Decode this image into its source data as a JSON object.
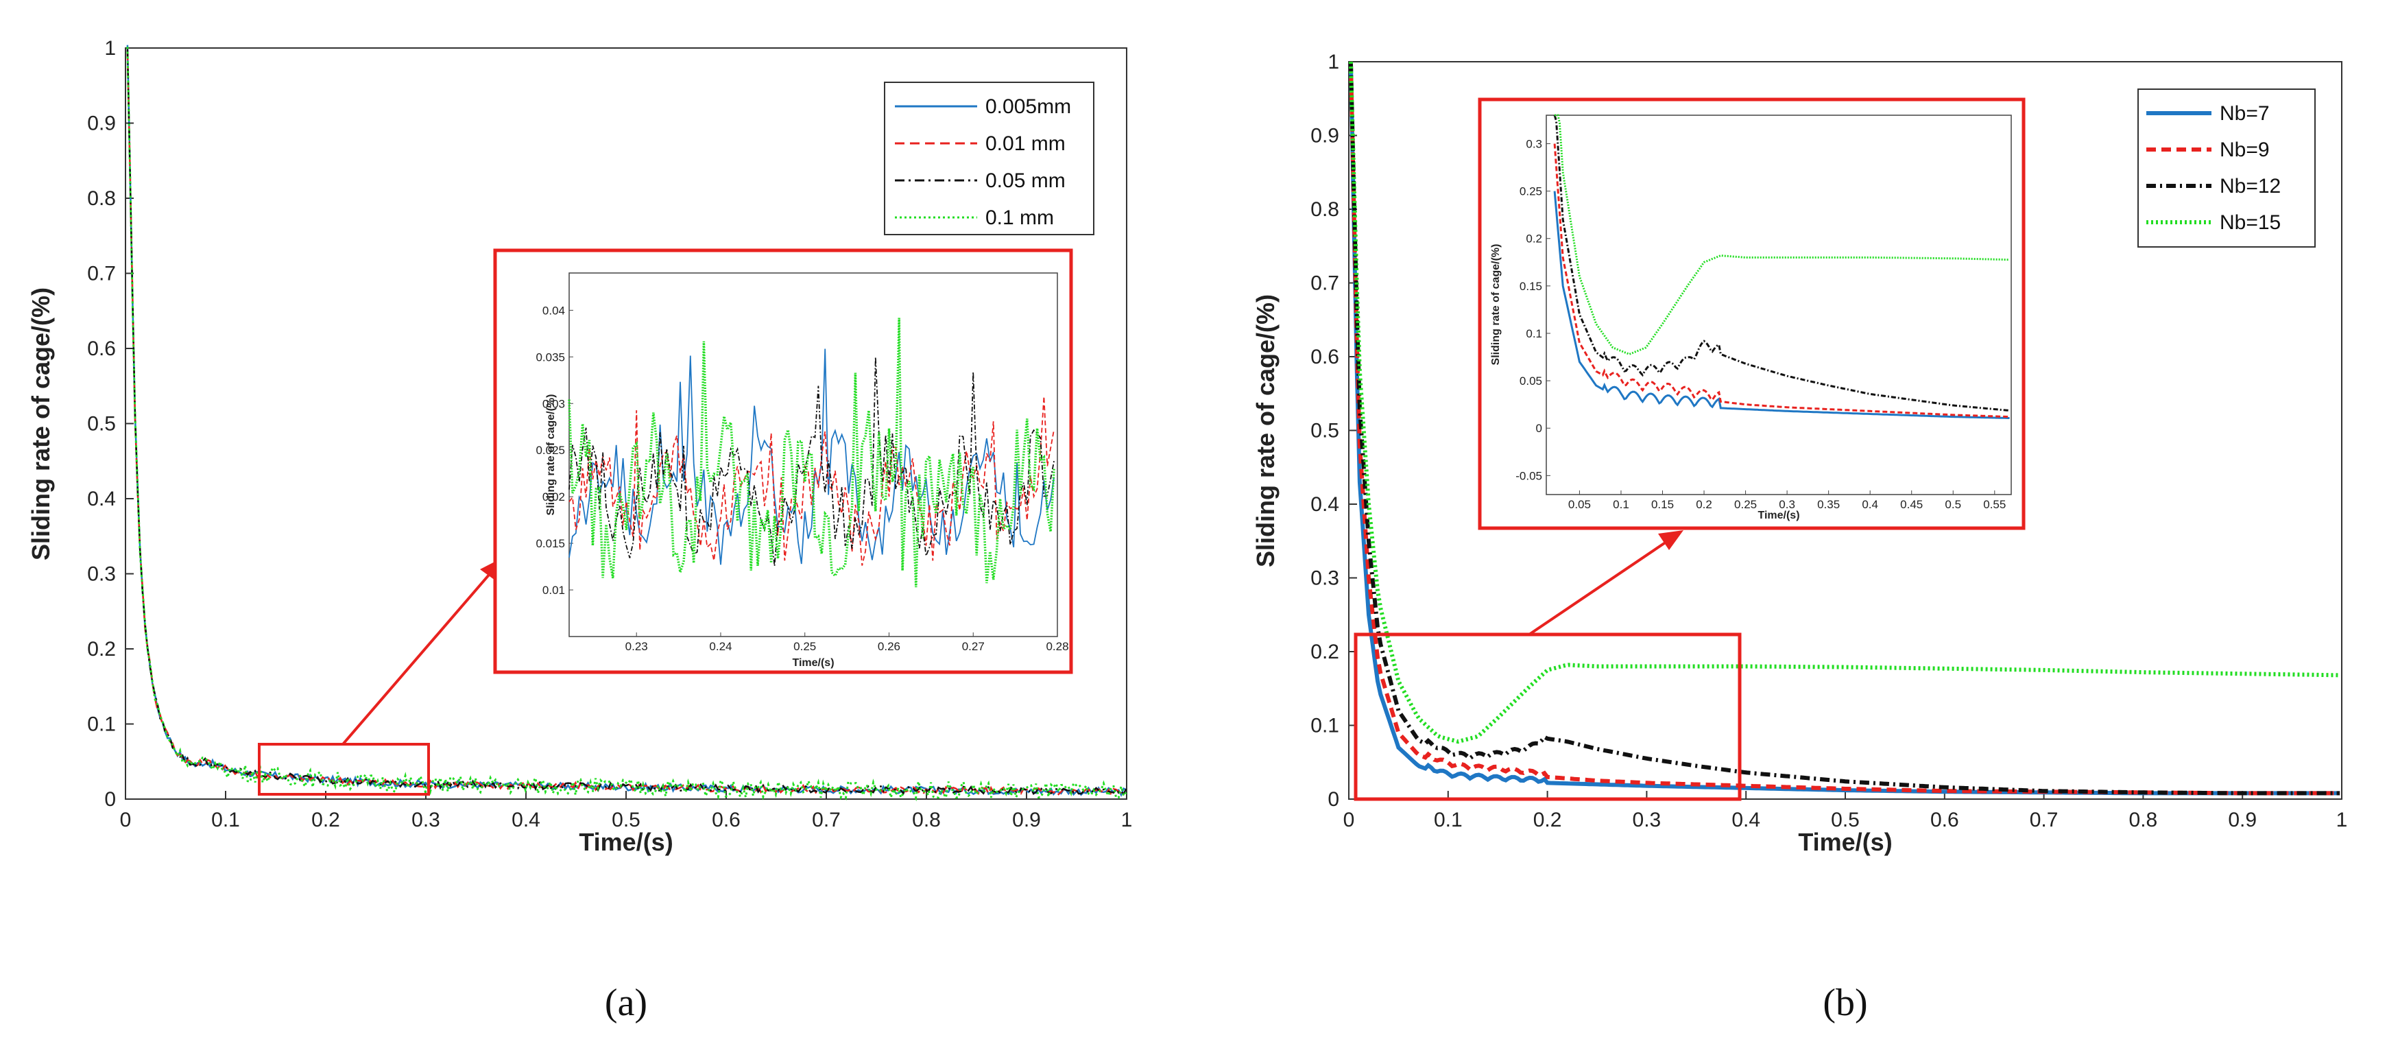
{
  "chart_data": [
    {
      "id": "a",
      "type": "line",
      "caption": "(a)",
      "xlabel": "Time/(s)",
      "ylabel": "Sliding rate of cage/(%)",
      "xlim": [
        0,
        1
      ],
      "ylim": [
        0,
        1
      ],
      "xticks": [
        "0",
        "0.1",
        "0.2",
        "0.3",
        "0.4",
        "0.5",
        "0.6",
        "0.7",
        "0.8",
        "0.9",
        "1"
      ],
      "yticks": [
        "0",
        "0.1",
        "0.2",
        "0.3",
        "0.4",
        "0.5",
        "0.6",
        "0.7",
        "0.8",
        "0.9",
        "1"
      ],
      "series": [
        {
          "name": "0.005mm",
          "color": "#1f77c4",
          "dash": "solid"
        },
        {
          "name": "0.01 mm",
          "color": "#e8221f",
          "dash": "dashed"
        },
        {
          "name": "0.05 mm",
          "color": "#111111",
          "dash": "dashdot"
        },
        {
          "name": "0.1  mm",
          "color": "#22dd22",
          "dash": "dotted"
        }
      ],
      "curve": {
        "x": [
          0.002,
          0.005,
          0.01,
          0.015,
          0.02,
          0.03,
          0.04,
          0.05,
          0.06,
          0.07,
          0.08,
          0.09,
          0.1,
          0.12,
          0.14,
          0.16,
          0.18,
          0.2,
          0.25,
          0.3,
          0.4,
          0.5,
          0.6,
          0.7,
          0.8,
          0.9,
          1.0
        ],
        "y": [
          1.0,
          0.8,
          0.48,
          0.32,
          0.22,
          0.13,
          0.09,
          0.065,
          0.052,
          0.045,
          0.05,
          0.045,
          0.04,
          0.035,
          0.032,
          0.03,
          0.028,
          0.026,
          0.022,
          0.02,
          0.018,
          0.016,
          0.014,
          0.013,
          0.012,
          0.011,
          0.01
        ]
      },
      "zoom_box": {
        "x": [
          0.13,
          0.3
        ],
        "y": [
          0.015,
          0.095
        ]
      },
      "inset": {
        "xlabel": "Time/(s)",
        "ylabel": "Sliding rate of cage/(%)",
        "xlim": [
          0.222,
          0.28
        ],
        "ylim": [
          0.005,
          0.044
        ],
        "xticks": [
          "0.23",
          "0.24",
          "0.25",
          "0.26",
          "0.27",
          "0.28"
        ],
        "yticks": [
          "0.01",
          "0.015",
          "0.02",
          "0.025",
          "0.03",
          "0.035",
          "0.04"
        ]
      }
    },
    {
      "id": "b",
      "type": "line",
      "caption": "(b)",
      "xlabel": "Time/(s)",
      "ylabel": "Sliding rate of cage/(%)",
      "xlim": [
        0,
        1
      ],
      "ylim": [
        0,
        1
      ],
      "xticks": [
        "0",
        "0.1",
        "0.2",
        "0.3",
        "0.4",
        "0.5",
        "0.6",
        "0.7",
        "0.8",
        "0.9",
        "1"
      ],
      "yticks": [
        "0",
        "0.1",
        "0.2",
        "0.3",
        "0.4",
        "0.5",
        "0.6",
        "0.7",
        "0.8",
        "0.9",
        "1"
      ],
      "series": [
        {
          "name": "Nb=7",
          "color": "#1f77c4",
          "dash": "solid",
          "x": [
            0.002,
            0.01,
            0.02,
            0.03,
            0.05,
            0.07,
            0.09,
            0.1,
            0.12,
            0.15,
            0.2,
            0.25,
            0.3,
            0.4,
            0.5,
            0.6,
            0.7,
            0.8,
            0.9,
            1.0
          ],
          "y": [
            1.0,
            0.45,
            0.25,
            0.15,
            0.07,
            0.045,
            0.035,
            0.03,
            0.028,
            0.025,
            0.022,
            0.02,
            0.018,
            0.015,
            0.012,
            0.01,
            0.009,
            0.008,
            0.008,
            0.008
          ]
        },
        {
          "name": "Nb=9",
          "color": "#e8221f",
          "dash": "dashed",
          "x": [
            0.002,
            0.01,
            0.02,
            0.03,
            0.05,
            0.07,
            0.1,
            0.12,
            0.15,
            0.2,
            0.25,
            0.3,
            0.4,
            0.5,
            0.6,
            0.7,
            0.8,
            0.9,
            1.0
          ],
          "y": [
            1.0,
            0.5,
            0.3,
            0.18,
            0.09,
            0.06,
            0.045,
            0.04,
            0.038,
            0.03,
            0.025,
            0.022,
            0.018,
            0.014,
            0.011,
            0.01,
            0.009,
            0.008,
            0.008
          ]
        },
        {
          "name": "Nb=12",
          "color": "#111111",
          "dash": "dashdot",
          "x": [
            0.002,
            0.01,
            0.02,
            0.03,
            0.05,
            0.07,
            0.1,
            0.12,
            0.15,
            0.18,
            0.2,
            0.22,
            0.25,
            0.3,
            0.35,
            0.4,
            0.5,
            0.6,
            0.7,
            0.8,
            0.9,
            1.0
          ],
          "y": [
            1.0,
            0.55,
            0.35,
            0.22,
            0.12,
            0.08,
            0.06,
            0.055,
            0.058,
            0.065,
            0.082,
            0.078,
            0.068,
            0.055,
            0.045,
            0.036,
            0.024,
            0.016,
            0.011,
            0.009,
            0.008,
            0.008
          ]
        },
        {
          "name": "Nb=15",
          "color": "#22dd22",
          "dash": "dotted",
          "x": [
            0.002,
            0.01,
            0.02,
            0.03,
            0.05,
            0.07,
            0.09,
            0.11,
            0.13,
            0.15,
            0.18,
            0.2,
            0.22,
            0.25,
            0.3,
            0.4,
            0.5,
            0.6,
            0.7,
            0.8,
            0.9,
            1.0
          ],
          "y": [
            1.0,
            0.6,
            0.4,
            0.27,
            0.16,
            0.11,
            0.085,
            0.078,
            0.085,
            0.11,
            0.15,
            0.175,
            0.182,
            0.18,
            0.18,
            0.18,
            0.179,
            0.177,
            0.175,
            0.172,
            0.17,
            0.168
          ]
        }
      ],
      "zoom_box": {
        "x": [
          0.01,
          0.39
        ],
        "y": [
          0.01,
          0.25
        ]
      },
      "inset": {
        "xlabel": "Time/(s)",
        "ylabel": "Sliding rate of cage/(%)",
        "xlim": [
          0.01,
          0.57
        ],
        "ylim": [
          -0.07,
          0.33
        ],
        "xticks": [
          "0.05",
          "0.1",
          "0.15",
          "0.2",
          "0.25",
          "0.3",
          "0.35",
          "0.4",
          "0.45",
          "0.5",
          "0.55"
        ],
        "yticks": [
          "-0.05",
          "0",
          "0.05",
          "0.1",
          "0.15",
          "0.2",
          "0.25",
          "0.3"
        ]
      }
    }
  ]
}
